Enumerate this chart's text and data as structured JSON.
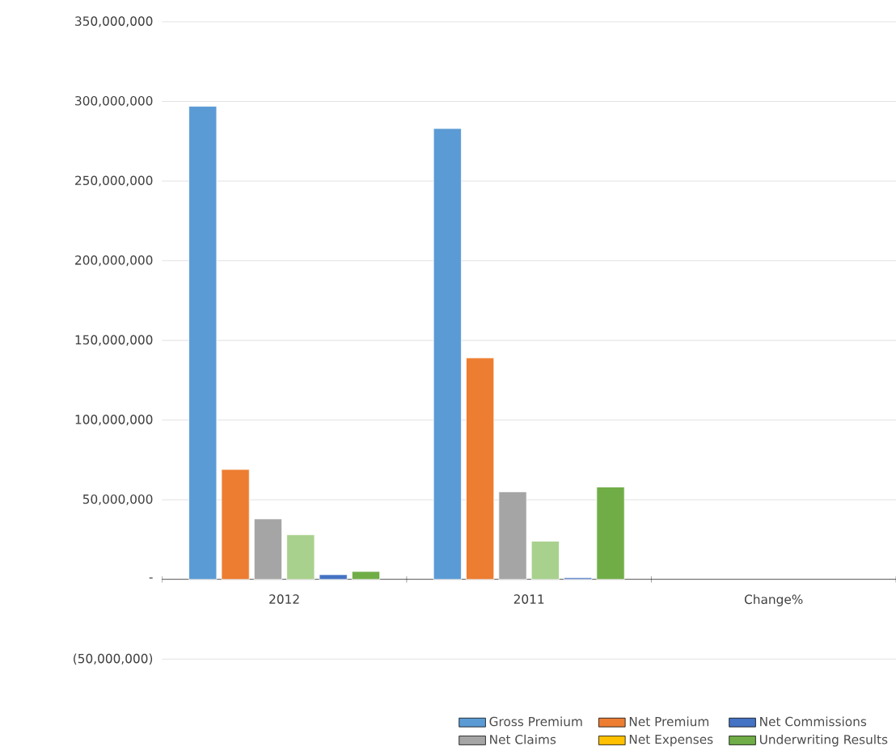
{
  "chart_data": {
    "type": "bar",
    "categories": [
      "2012",
      "2011",
      "Change%"
    ],
    "series": [
      {
        "name": "Gross Premium",
        "color": "#5b9bd5",
        "values": [
          297000000,
          283000000,
          null
        ]
      },
      {
        "name": "Net Premium",
        "color": "#ed7d31",
        "values": [
          69000000,
          139000000,
          null
        ]
      },
      {
        "name": "Net Commissions",
        "color": "#4472c4",
        "values": [
          3000000,
          1000000,
          null
        ]
      },
      {
        "name": "Net Claims",
        "color": "#a5a5a5",
        "values": [
          38000000,
          55000000,
          null
        ]
      },
      {
        "name": "Net Expenses",
        "color": "#ffc000",
        "values": [
          null,
          null,
          null
        ]
      },
      {
        "name": "Underwriting Results",
        "color": "#70ad47",
        "values": [
          5000000,
          58000000,
          null
        ]
      },
      {
        "color": "#a9d18e",
        "values": [
          28000000,
          24000000,
          null
        ]
      }
    ],
    "ylim": [
      -50000000,
      350000000
    ],
    "yticks": [
      {
        "value": -50000000,
        "label": "(50,000,000)"
      },
      {
        "value": 0,
        "label": "-"
      },
      {
        "value": 50000000,
        "label": "50,000,000"
      },
      {
        "value": 100000000,
        "label": "100,000,000"
      },
      {
        "value": 150000000,
        "label": "150,000,000"
      },
      {
        "value": 200000000,
        "label": "200,000,000"
      },
      {
        "value": 250000000,
        "label": "250,000,000"
      },
      {
        "value": 300000000,
        "label": "300,000,000"
      },
      {
        "value": 350000000,
        "label": "350,000,000"
      }
    ],
    "grid": "y",
    "legend": "bottom"
  }
}
